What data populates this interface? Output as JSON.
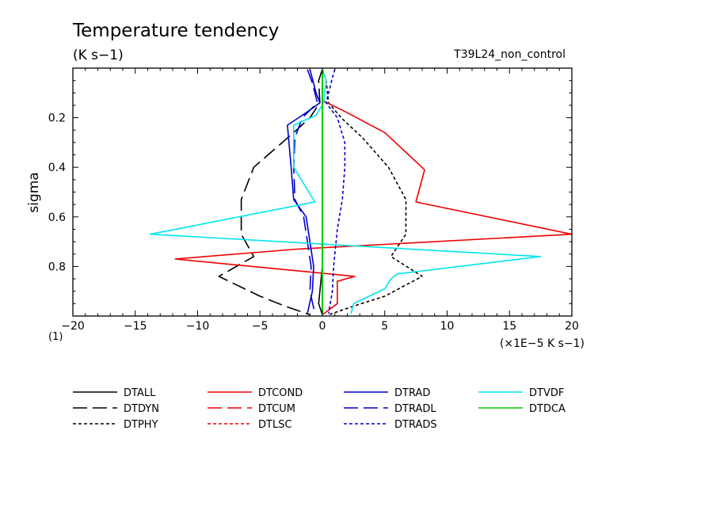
{
  "chart_data": {
    "type": "line",
    "title": "Temperature tendency",
    "subtitle": "(K s−1)",
    "run_label": "T39L24_non_control",
    "ylabel": "sigma",
    "xlabel": "(×1E−5 K s−1)",
    "x_origin_label": "(1)",
    "xlim": [
      -20,
      20
    ],
    "ylim": [
      0,
      1
    ],
    "y_inverted": true,
    "x_ticks": [
      -20,
      -15,
      -10,
      -5,
      0,
      5,
      10,
      15,
      20
    ],
    "x_tick_labels": [
      "−20",
      "−15",
      "−10",
      "−5",
      "0",
      "5",
      "10",
      "15",
      "20"
    ],
    "y_ticks": [
      0.2,
      0.4,
      0.6,
      0.8
    ],
    "y_tick_labels": [
      "0.2",
      "0.4",
      "0.6",
      "0.8"
    ],
    "series": [
      {
        "name": "DTALL",
        "color": "#000000",
        "dash": "solid",
        "points": [
          [
            0,
            0.005
          ],
          [
            0,
            0.1
          ],
          [
            0,
            0.2
          ],
          [
            0,
            0.5
          ],
          [
            0,
            0.8
          ],
          [
            -0.3,
            0.95
          ],
          [
            0,
            0.995
          ]
        ]
      },
      {
        "name": "DTDYN",
        "color": "#000000",
        "dash": "long",
        "points": [
          [
            0,
            0.005
          ],
          [
            -0.3,
            0.05
          ],
          [
            -0.2,
            0.14
          ],
          [
            -1.0,
            0.2
          ],
          [
            -2.3,
            0.26
          ],
          [
            -5.5,
            0.4
          ],
          [
            -6.5,
            0.53
          ],
          [
            -6.5,
            0.67
          ],
          [
            -5.5,
            0.76
          ],
          [
            -8.3,
            0.84
          ],
          [
            -5.0,
            0.92
          ],
          [
            -3.0,
            0.96
          ],
          [
            -1.0,
            0.995
          ]
        ]
      },
      {
        "name": "DTPHY",
        "color": "#000000",
        "dash": "short",
        "points": [
          [
            0,
            0.005
          ],
          [
            0.3,
            0.05
          ],
          [
            0.5,
            0.14
          ],
          [
            1.5,
            0.2
          ],
          [
            3.2,
            0.28
          ],
          [
            5.3,
            0.4
          ],
          [
            6.7,
            0.53
          ],
          [
            6.7,
            0.67
          ],
          [
            5.5,
            0.76
          ],
          [
            8.0,
            0.84
          ],
          [
            5.0,
            0.92
          ],
          [
            2.5,
            0.96
          ],
          [
            0.5,
            0.995
          ]
        ]
      },
      {
        "name": "DTCOND",
        "color": "#ee0000",
        "dash": "solid",
        "points": [
          [
            0,
            0.13
          ],
          [
            2.0,
            0.18
          ],
          [
            5.0,
            0.26
          ],
          [
            8.2,
            0.41
          ],
          [
            7.5,
            0.54
          ],
          [
            20,
            0.67
          ],
          [
            -2,
            0.73
          ],
          [
            -11.8,
            0.77
          ],
          [
            2.6,
            0.84
          ],
          [
            1.2,
            0.86
          ],
          [
            1.2,
            0.95
          ],
          [
            0,
            0.995
          ]
        ]
      },
      {
        "name": "DTCUM",
        "color": "#ee0000",
        "dash": "long",
        "points": []
      },
      {
        "name": "DTLSC",
        "color": "#ee0000",
        "dash": "short",
        "points": []
      },
      {
        "name": "DTRAD",
        "color": "#0000cc",
        "dash": "solid",
        "points": [
          [
            -1.0,
            0.005
          ],
          [
            -0.5,
            0.1
          ],
          [
            -0.2,
            0.14
          ],
          [
            -1.3,
            0.18
          ],
          [
            -2.8,
            0.23
          ],
          [
            -2.5,
            0.4
          ],
          [
            -2.3,
            0.53
          ],
          [
            -1.3,
            0.6
          ],
          [
            -1.0,
            0.7
          ],
          [
            -0.7,
            0.8
          ],
          [
            -0.8,
            0.9
          ],
          [
            -1.2,
            0.99
          ]
        ]
      },
      {
        "name": "DTRADL",
        "color": "#0000cc",
        "dash": "long",
        "points": [
          [
            -1.2,
            0.005
          ],
          [
            -0.8,
            0.06
          ],
          [
            -0.4,
            0.14
          ],
          [
            -1.6,
            0.2
          ],
          [
            -2.2,
            0.28
          ],
          [
            -2.3,
            0.4
          ],
          [
            -2.2,
            0.53
          ],
          [
            -1.5,
            0.6
          ],
          [
            -1.2,
            0.7
          ],
          [
            -0.9,
            0.8
          ],
          [
            -1.0,
            0.9
          ],
          [
            -0.6,
            0.99
          ]
        ]
      },
      {
        "name": "DTRADS",
        "color": "#0000cc",
        "dash": "short",
        "points": [
          [
            1.0,
            0.005
          ],
          [
            0.8,
            0.04
          ],
          [
            0.3,
            0.14
          ],
          [
            1.2,
            0.2
          ],
          [
            1.8,
            0.3
          ],
          [
            1.8,
            0.4
          ],
          [
            1.6,
            0.53
          ],
          [
            1.2,
            0.65
          ],
          [
            0.9,
            0.8
          ],
          [
            0.8,
            0.9
          ],
          [
            0.5,
            0.99
          ]
        ]
      },
      {
        "name": "DTVDF",
        "color": "#00e5ee",
        "dash": "solid",
        "points": [
          [
            0,
            0.005
          ],
          [
            0.3,
            0.05
          ],
          [
            0.1,
            0.14
          ],
          [
            -0.5,
            0.19
          ],
          [
            -2.3,
            0.23
          ],
          [
            -2.3,
            0.4
          ],
          [
            -0.6,
            0.54
          ],
          [
            -13.8,
            0.67
          ],
          [
            17.5,
            0.76
          ],
          [
            6.0,
            0.83
          ],
          [
            5.5,
            0.85
          ],
          [
            5.0,
            0.89
          ],
          [
            2.5,
            0.95
          ],
          [
            2.3,
            0.99
          ]
        ]
      },
      {
        "name": "DTDCA",
        "color": "#00cc00",
        "dash": "solid",
        "points": [
          [
            0,
            0.005
          ],
          [
            0,
            0.995
          ]
        ]
      }
    ]
  }
}
